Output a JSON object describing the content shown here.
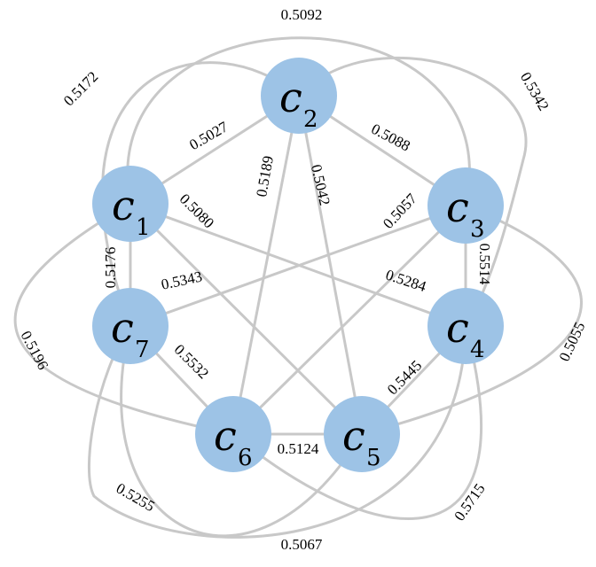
{
  "nodes": [
    {
      "id": "c1",
      "letter": "c",
      "sub": "1"
    },
    {
      "id": "c2",
      "letter": "c",
      "sub": "2"
    },
    {
      "id": "c3",
      "letter": "c",
      "sub": "3"
    },
    {
      "id": "c4",
      "letter": "c",
      "sub": "4"
    },
    {
      "id": "c5",
      "letter": "c",
      "sub": "5"
    },
    {
      "id": "c6",
      "letter": "c",
      "sub": "6"
    },
    {
      "id": "c7",
      "letter": "c",
      "sub": "7"
    }
  ],
  "edges": [
    {
      "from": "c1",
      "to": "c2",
      "label": "0.5027"
    },
    {
      "from": "c2",
      "to": "c3",
      "label": "0.5088"
    },
    {
      "from": "c3",
      "to": "c4",
      "label": "0.5514"
    },
    {
      "from": "c4",
      "to": "c5",
      "label": "0.5445"
    },
    {
      "from": "c5",
      "to": "c6",
      "label": "0.5124"
    },
    {
      "from": "c6",
      "to": "c7",
      "label": "0.5532"
    },
    {
      "from": "c7",
      "to": "c1",
      "label": "0.5176"
    },
    {
      "from": "c1",
      "to": "c5",
      "label": "0.5080"
    },
    {
      "from": "c2",
      "to": "c6",
      "label": "0.5189"
    },
    {
      "from": "c2",
      "to": "c5",
      "label": "0.5042"
    },
    {
      "from": "c3",
      "to": "c6",
      "label": "0.5057"
    },
    {
      "from": "c1",
      "to": "c4",
      "label": "0.5284"
    },
    {
      "from": "c3",
      "to": "c7",
      "label": "0.5343"
    },
    {
      "from": "c1",
      "to": "c3",
      "label": "0.5092"
    },
    {
      "from": "c2",
      "to": "c4",
      "label": "0.5342"
    },
    {
      "from": "c3",
      "to": "c5",
      "label": "0.5055"
    },
    {
      "from": "c4",
      "to": "c6",
      "label": "0.5715"
    },
    {
      "from": "c5",
      "to": "c7",
      "label": "0.5067"
    },
    {
      "from": "c6",
      "to": "c1",
      "label": "0.5196"
    },
    {
      "from": "c7",
      "to": "c2",
      "label": "0.5172"
    },
    {
      "from": "c4",
      "to": "c7",
      "label": "0.5255"
    }
  ]
}
